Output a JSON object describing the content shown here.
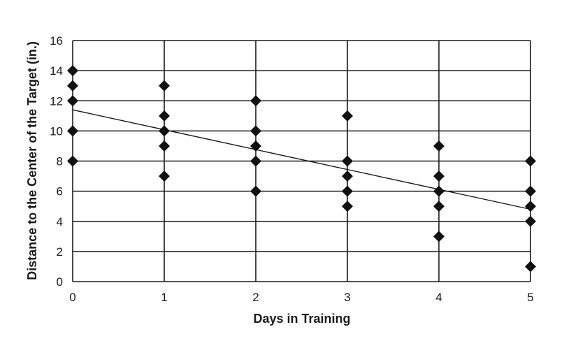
{
  "chart_data": {
    "type": "scatter",
    "title": "",
    "xlabel": "Days in Training",
    "ylabel": "Distance to the Center of the Target (in.)",
    "xlim": [
      0,
      5
    ],
    "ylim": [
      0,
      16
    ],
    "xticks": [
      0,
      1,
      2,
      3,
      4,
      5
    ],
    "yticks": [
      0,
      2,
      4,
      6,
      8,
      10,
      12,
      14,
      16
    ],
    "grid": true,
    "legend": "none",
    "marker": "diamond",
    "points": [
      {
        "x": 0,
        "y": 14
      },
      {
        "x": 0,
        "y": 13
      },
      {
        "x": 0,
        "y": 12
      },
      {
        "x": 0,
        "y": 10
      },
      {
        "x": 0,
        "y": 8
      },
      {
        "x": 1,
        "y": 13
      },
      {
        "x": 1,
        "y": 11
      },
      {
        "x": 1,
        "y": 10
      },
      {
        "x": 1,
        "y": 9
      },
      {
        "x": 1,
        "y": 7
      },
      {
        "x": 2,
        "y": 12
      },
      {
        "x": 2,
        "y": 10
      },
      {
        "x": 2,
        "y": 9
      },
      {
        "x": 2,
        "y": 8
      },
      {
        "x": 2,
        "y": 6
      },
      {
        "x": 3,
        "y": 11
      },
      {
        "x": 3,
        "y": 8
      },
      {
        "x": 3,
        "y": 7
      },
      {
        "x": 3,
        "y": 6
      },
      {
        "x": 3,
        "y": 5
      },
      {
        "x": 4,
        "y": 9
      },
      {
        "x": 4,
        "y": 7
      },
      {
        "x": 4,
        "y": 6
      },
      {
        "x": 4,
        "y": 5
      },
      {
        "x": 4,
        "y": 3
      },
      {
        "x": 5,
        "y": 8
      },
      {
        "x": 5,
        "y": 6
      },
      {
        "x": 5,
        "y": 5
      },
      {
        "x": 5,
        "y": 4
      },
      {
        "x": 5,
        "y": 1
      }
    ],
    "trendline": {
      "start": [
        0,
        11.4
      ],
      "end": [
        5,
        4.8
      ]
    }
  }
}
